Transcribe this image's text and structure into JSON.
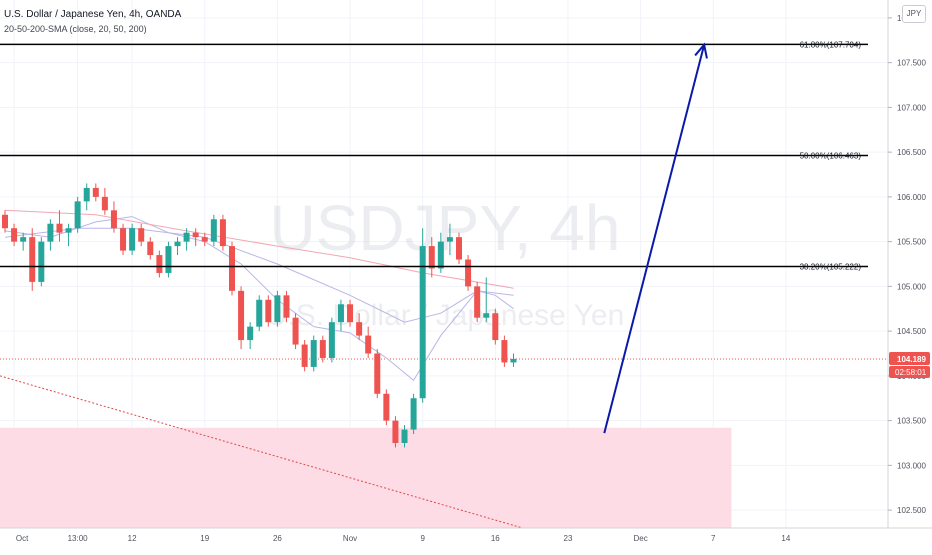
{
  "header": {
    "title": "U.S. Dollar / Japanese Yen, 4h, OANDA",
    "indicator": "20-50-200-SMA (close, 20, 50, 200)",
    "currency_badge": "JPY"
  },
  "watermark": {
    "symbol": "USDJPY, 4h",
    "name": "U.S. Dollar / Japanese Yen"
  },
  "price_tag": {
    "value": "104.189",
    "countdown": "02:58:01",
    "color": "#ef5350"
  },
  "chart_data": {
    "type": "candlestick",
    "title": "U.S. Dollar / Japanese Yen, 4h, OANDA",
    "ylim": [
      102.3,
      108.2
    ],
    "y_ticks": [
      "108.000",
      "107.500",
      "107.000",
      "106.500",
      "106.000",
      "105.500",
      "105.000",
      "104.500",
      "104.000",
      "103.500",
      "103.000",
      "102.500"
    ],
    "y_tick_values": [
      108.0,
      107.5,
      107.0,
      106.5,
      106.0,
      105.5,
      105.0,
      104.5,
      104.0,
      103.5,
      103.0,
      102.5
    ],
    "x_ticks": [
      "Oct",
      "13:00",
      "12",
      "19",
      "26",
      "Nov",
      "9",
      "16",
      "23",
      "Dec",
      "7",
      "14"
    ],
    "x_tick_slot": [
      1,
      8,
      14,
      22,
      30,
      38,
      46,
      54,
      62,
      70,
      78,
      86
    ],
    "slot_count": 97,
    "up_color": "#26a69a",
    "down_color": "#ef5350",
    "candles": [
      [
        105.8,
        105.85,
        105.6,
        105.65
      ],
      [
        105.65,
        105.7,
        105.45,
        105.5
      ],
      [
        105.5,
        105.6,
        105.4,
        105.55
      ],
      [
        105.55,
        105.65,
        104.95,
        105.05
      ],
      [
        105.05,
        105.55,
        105.0,
        105.5
      ],
      [
        105.5,
        105.75,
        105.4,
        105.7
      ],
      [
        105.7,
        105.85,
        105.5,
        105.6
      ],
      [
        105.6,
        105.7,
        105.45,
        105.65
      ],
      [
        105.65,
        106.0,
        105.6,
        105.95
      ],
      [
        105.95,
        106.15,
        105.85,
        106.1
      ],
      [
        106.1,
        106.15,
        105.95,
        106.0
      ],
      [
        106.0,
        106.1,
        105.8,
        105.85
      ],
      [
        105.85,
        105.95,
        105.6,
        105.65
      ],
      [
        105.65,
        105.7,
        105.35,
        105.4
      ],
      [
        105.4,
        105.7,
        105.35,
        105.65
      ],
      [
        105.65,
        105.7,
        105.45,
        105.5
      ],
      [
        105.5,
        105.55,
        105.3,
        105.35
      ],
      [
        105.35,
        105.4,
        105.1,
        105.15
      ],
      [
        105.15,
        105.5,
        105.1,
        105.45
      ],
      [
        105.45,
        105.55,
        105.35,
        105.5
      ],
      [
        105.5,
        105.65,
        105.4,
        105.6
      ],
      [
        105.6,
        105.65,
        105.45,
        105.55
      ],
      [
        105.55,
        105.6,
        105.45,
        105.5
      ],
      [
        105.5,
        105.8,
        105.45,
        105.75
      ],
      [
        105.75,
        105.8,
        105.4,
        105.45
      ],
      [
        105.45,
        105.5,
        104.9,
        104.95
      ],
      [
        104.95,
        105.0,
        104.3,
        104.4
      ],
      [
        104.4,
        104.6,
        104.3,
        104.55
      ],
      [
        104.55,
        104.9,
        104.5,
        104.85
      ],
      [
        104.85,
        104.9,
        104.55,
        104.6
      ],
      [
        104.6,
        104.95,
        104.55,
        104.9
      ],
      [
        104.9,
        104.95,
        104.6,
        104.65
      ],
      [
        104.65,
        104.7,
        104.3,
        104.35
      ],
      [
        104.35,
        104.4,
        104.05,
        104.1
      ],
      [
        104.1,
        104.45,
        104.05,
        104.4
      ],
      [
        104.4,
        104.45,
        104.15,
        104.2
      ],
      [
        104.2,
        104.65,
        104.15,
        104.6
      ],
      [
        104.6,
        104.85,
        104.5,
        104.8
      ],
      [
        104.8,
        104.85,
        104.55,
        104.6
      ],
      [
        104.6,
        104.7,
        104.4,
        104.45
      ],
      [
        104.45,
        104.55,
        104.2,
        104.25
      ],
      [
        104.25,
        104.3,
        103.75,
        103.8
      ],
      [
        103.8,
        103.85,
        103.45,
        103.5
      ],
      [
        103.5,
        103.55,
        103.2,
        103.25
      ],
      [
        103.25,
        103.45,
        103.2,
        103.4
      ],
      [
        103.4,
        103.8,
        103.35,
        103.75
      ],
      [
        103.75,
        105.65,
        103.7,
        105.45
      ],
      [
        105.45,
        105.55,
        105.1,
        105.2
      ],
      [
        105.2,
        105.6,
        105.15,
        105.5
      ],
      [
        105.5,
        105.7,
        105.35,
        105.55
      ],
      [
        105.55,
        105.6,
        105.25,
        105.3
      ],
      [
        105.3,
        105.35,
        104.95,
        105.0
      ],
      [
        105.0,
        105.05,
        104.6,
        104.65
      ],
      [
        104.65,
        105.1,
        104.6,
        104.7
      ],
      [
        104.7,
        104.75,
        104.35,
        104.4
      ],
      [
        104.4,
        104.45,
        104.1,
        104.15
      ],
      [
        104.15,
        104.25,
        104.1,
        104.19
      ]
    ],
    "sma20": [
      [
        0,
        105.62
      ],
      [
        5,
        105.55
      ],
      [
        10,
        105.72
      ],
      [
        14,
        105.78
      ],
      [
        18,
        105.6
      ],
      [
        22,
        105.5
      ],
      [
        26,
        105.25
      ],
      [
        30,
        104.85
      ],
      [
        34,
        104.55
      ],
      [
        38,
        104.48
      ],
      [
        42,
        104.2
      ],
      [
        45,
        103.95
      ],
      [
        48,
        104.45
      ],
      [
        52,
        104.95
      ],
      [
        54,
        104.9
      ],
      [
        56,
        104.75
      ]
    ],
    "sma50": [
      [
        0,
        105.55
      ],
      [
        8,
        105.65
      ],
      [
        14,
        105.65
      ],
      [
        22,
        105.55
      ],
      [
        30,
        105.25
      ],
      [
        38,
        104.9
      ],
      [
        44,
        104.6
      ],
      [
        48,
        104.7
      ],
      [
        52,
        104.95
      ],
      [
        56,
        104.9
      ]
    ],
    "sma200": [
      [
        0,
        105.85
      ],
      [
        10,
        105.8
      ],
      [
        20,
        105.62
      ],
      [
        30,
        105.45
      ],
      [
        38,
        105.32
      ],
      [
        46,
        105.15
      ],
      [
        56,
        104.98
      ]
    ],
    "fib_levels": [
      {
        "label": "61.80%(107.704)",
        "value": 107.704
      },
      {
        "label": "50.00%(106.463)",
        "value": 106.463
      },
      {
        "label": "38.20%(105.222)",
        "value": 105.222
      }
    ],
    "demand_zone": {
      "from_slot": 0,
      "to_slot": 80,
      "top": 103.42,
      "bottom": 102.3
    },
    "trendline": {
      "start": [
        0,
        104.0
      ],
      "end": [
        57,
        102.3
      ]
    },
    "arrow": {
      "start": [
        66,
        103.36
      ],
      "end": [
        77,
        107.7
      ]
    },
    "current_price": 104.189,
    "colors": {
      "fib": "#000000",
      "zone": "#fdd6e0",
      "arrow": "#0a1aa8",
      "grid": "#f0f3fa",
      "price": "#ef5350",
      "trend": "#e04848",
      "sma": "#b8b6e6",
      "sma_long": "#f2a7b4"
    }
  }
}
